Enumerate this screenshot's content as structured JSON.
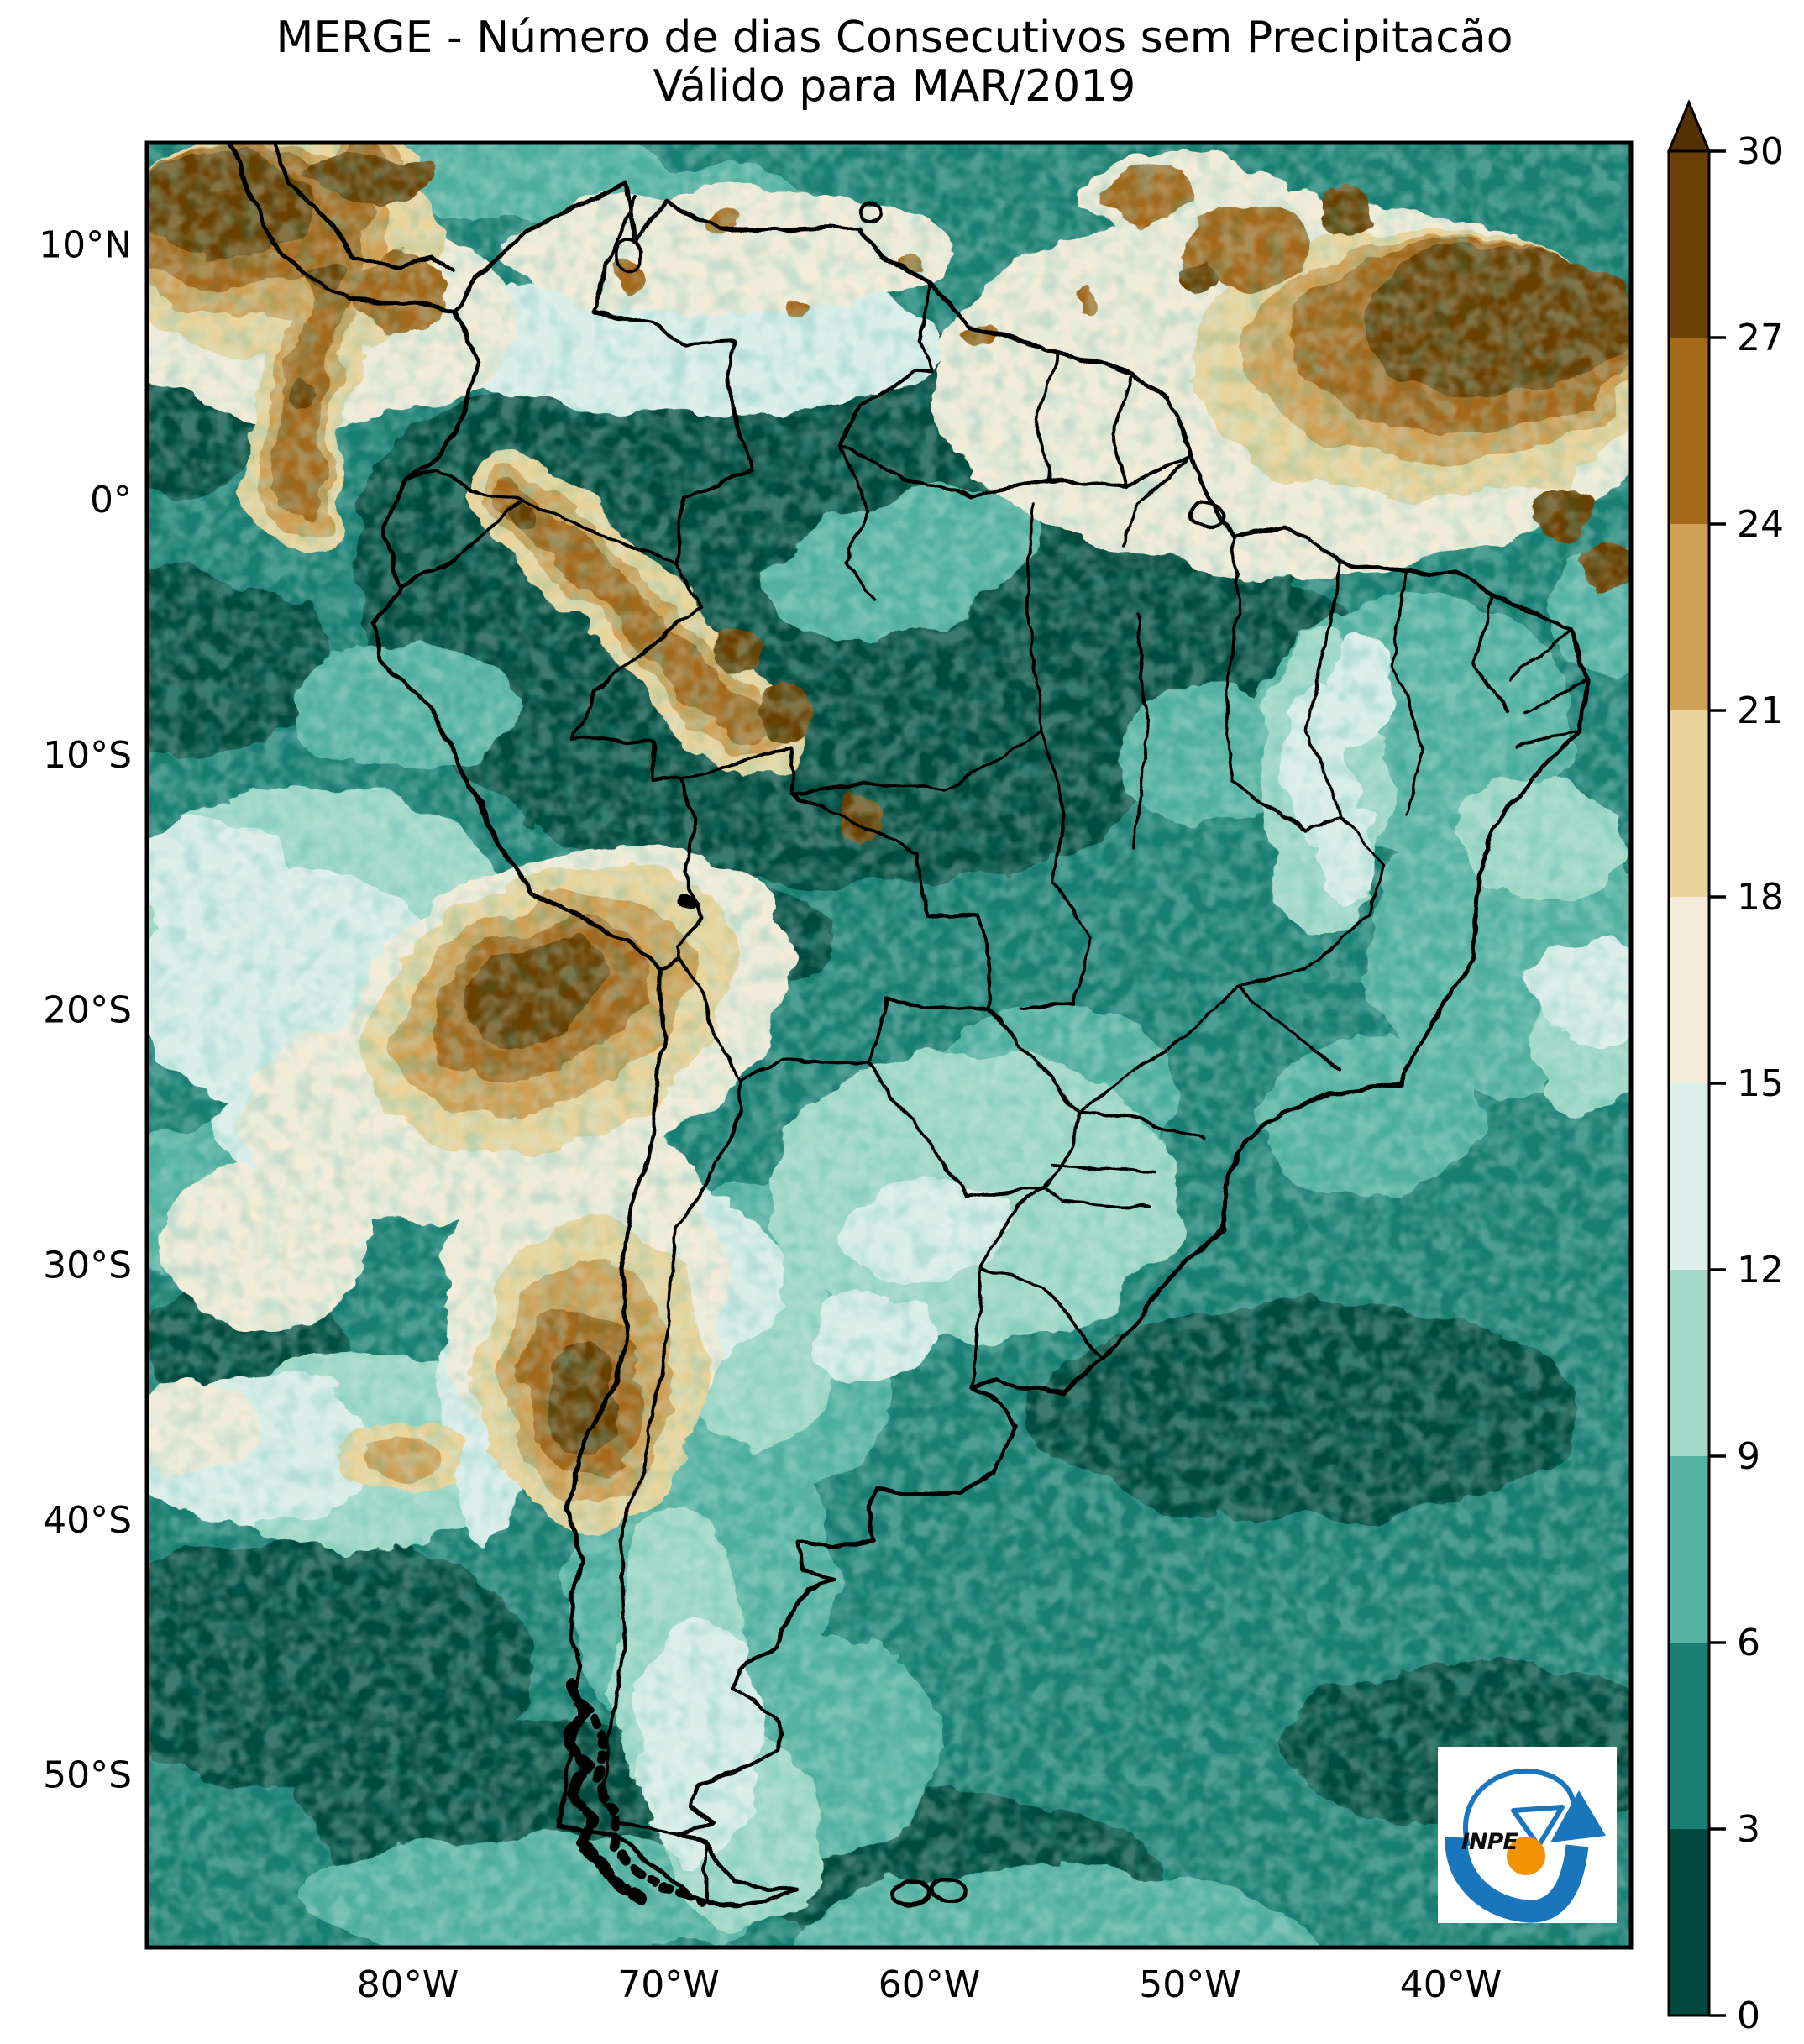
{
  "title": {
    "line1": "MERGE - Número de dias Consecutivos sem Precipitacão",
    "line2": "Válido para MAR/2019"
  },
  "map": {
    "lat_ticks": [
      {
        "label": "10°N",
        "lat": 10
      },
      {
        "label": "0°",
        "lat": 0
      },
      {
        "label": "10°S",
        "lat": -10
      },
      {
        "label": "20°S",
        "lat": -20
      },
      {
        "label": "30°S",
        "lat": -30
      },
      {
        "label": "40°S",
        "lat": -40
      },
      {
        "label": "50°S",
        "lat": -50
      }
    ],
    "lon_ticks": [
      {
        "label": "80°W",
        "lon": -80
      },
      {
        "label": "70°W",
        "lon": -70
      },
      {
        "label": "60°W",
        "lon": -60
      },
      {
        "label": "50°W",
        "lon": -50
      },
      {
        "label": "40°W",
        "lon": -40
      }
    ]
  },
  "colorbar": {
    "min": 0,
    "max": 30,
    "extend": "max",
    "ticks": [
      {
        "value": 0,
        "label": "0"
      },
      {
        "value": 3,
        "label": "3"
      },
      {
        "value": 6,
        "label": "6"
      },
      {
        "value": 9,
        "label": "9"
      },
      {
        "value": 12,
        "label": "12"
      },
      {
        "value": 15,
        "label": "15"
      },
      {
        "value": 18,
        "label": "18"
      },
      {
        "value": 21,
        "label": "21"
      },
      {
        "value": 24,
        "label": "24"
      },
      {
        "value": 27,
        "label": "27"
      },
      {
        "value": 30,
        "label": "30"
      }
    ],
    "segments": [
      {
        "from": 0,
        "to": 3,
        "color": "#00493E"
      },
      {
        "from": 3,
        "to": 6,
        "color": "#1B7E72"
      },
      {
        "from": 6,
        "to": 9,
        "color": "#56B2A2"
      },
      {
        "from": 9,
        "to": 12,
        "color": "#A2D9C8"
      },
      {
        "from": 12,
        "to": 15,
        "color": "#DDEFEA"
      },
      {
        "from": 15,
        "to": 18,
        "color": "#F4ECD9"
      },
      {
        "from": 18,
        "to": 21,
        "color": "#EAD49B"
      },
      {
        "from": 21,
        "to": 24,
        "color": "#CFA055"
      },
      {
        "from": 24,
        "to": 27,
        "color": "#A5691A"
      },
      {
        "from": 27,
        "to": 30,
        "color": "#6B4005"
      }
    ],
    "extend_max_color": "#543005"
  },
  "logo": {
    "text": "INPE",
    "blue": "#1A76BC",
    "orange": "#F39200"
  },
  "chart_data": {
    "type": "heatmap",
    "title": "MERGE - Número de dias Consecutivos sem Precipitacão",
    "subtitle": "Válido para MAR/2019",
    "region": "América do Sul",
    "x_ticks": [
      "80°W",
      "70°W",
      "60°W",
      "50°W",
      "40°W"
    ],
    "y_ticks": [
      "10°N",
      "0°",
      "10°S",
      "20°S",
      "30°S",
      "40°S",
      "50°S"
    ],
    "colorbar_ticks": [
      0,
      3,
      6,
      9,
      12,
      15,
      18,
      21,
      24,
      27,
      30
    ],
    "colorbar_extend": "max",
    "value_range": [
      0,
      30
    ],
    "palette_low_to_high": [
      "#00493E",
      "#1B7E72",
      "#56B2A2",
      "#A2D9C8",
      "#DDEFEA",
      "#F4ECD9",
      "#EAD49B",
      "#CFA055",
      "#A5691A",
      "#6B4005"
    ],
    "extend_color": "#543005",
    "regions_summary": [
      "0-3 dias (verde-azulado escuro) sobre a Amazônia e norte do Brasil",
      "Valores altos (>21 dias, marrom) no Pacífico tropical, Atlântico norte tropical, Andes do Peru, região do Atacama e Andes ~33°S",
      "9-15 dias (tons claros) no sul do Brasil, Uruguai e oceano a oeste do Peru/Chile"
    ]
  }
}
